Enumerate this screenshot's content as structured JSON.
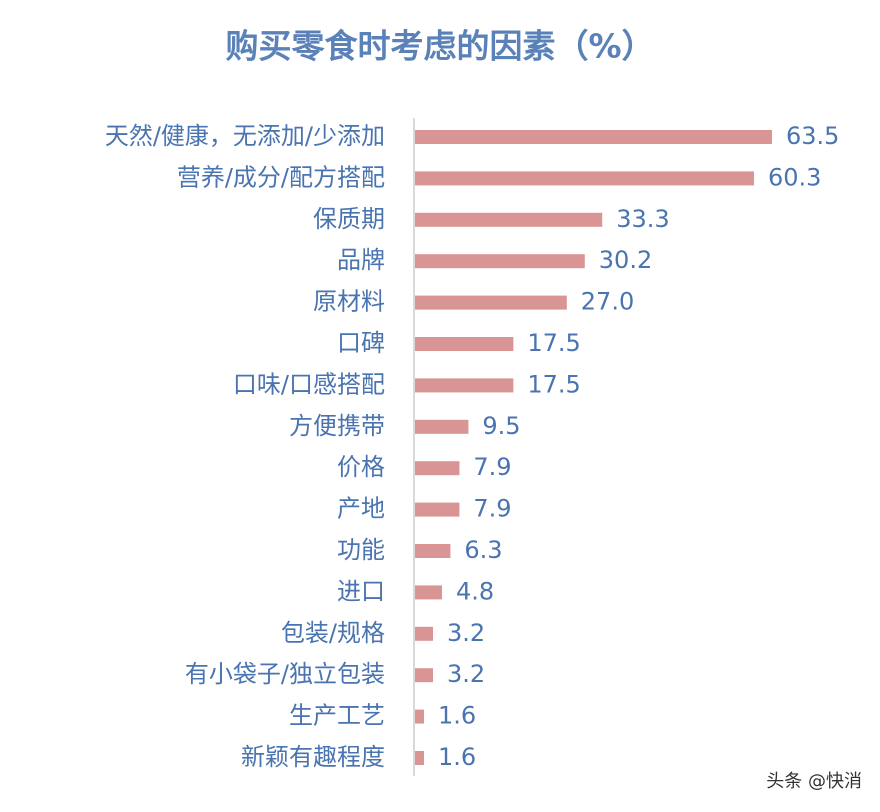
{
  "chart_data": {
    "type": "hbar",
    "title": "购买零食时考虑的因素（%）",
    "categories": [
      "天然/健康，无添加/少添加",
      "营养/成分/配方搭配",
      "保质期",
      "品牌",
      "原材料",
      "口碑",
      "口味/口感搭配",
      "方便携带",
      "价格",
      "产地",
      "功能",
      "进口",
      "包装/规格",
      "有小袋子/独立包装",
      "生产工艺",
      "新颖有趣程度"
    ],
    "values": [
      63.5,
      60.3,
      33.3,
      30.2,
      27.0,
      17.5,
      17.5,
      9.5,
      7.9,
      7.9,
      6.3,
      4.8,
      3.2,
      3.2,
      1.6,
      1.6
    ],
    "value_labels": [
      "63.5",
      "60.3",
      "33.3",
      "30.2",
      "27.0",
      "17.5",
      "17.5",
      "9.5",
      "7.9",
      "7.9",
      "6.3",
      "4.8",
      "3.2",
      "3.2",
      "1.6",
      "1.6"
    ],
    "color": "#d99594",
    "watermark": "头条 @快消"
  }
}
